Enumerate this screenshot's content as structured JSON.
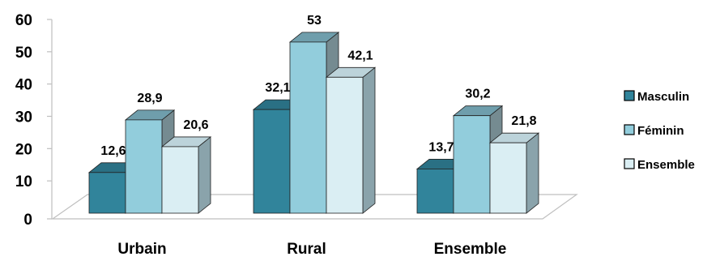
{
  "chart_data": {
    "type": "bar",
    "style": "3d-clustered-column",
    "categories": [
      "Urbain",
      "Rural",
      "Ensemble"
    ],
    "series": [
      {
        "name": "Masculin",
        "values": [
          12.6,
          32.1,
          13.7
        ],
        "labels": [
          "12,6",
          "32,1",
          "13,7"
        ],
        "color": "#31849b"
      },
      {
        "name": "Féminin",
        "values": [
          28.9,
          53,
          30.2
        ],
        "labels": [
          "28,9",
          "53",
          "30,2"
        ],
        "color": "#92cddc"
      },
      {
        "name": "Ensemble",
        "values": [
          20.6,
          42.1,
          21.8
        ],
        "labels": [
          "20,6",
          "42,1",
          "21,8"
        ],
        "color": "#daeef3"
      }
    ],
    "yticks": [
      "0",
      "10",
      "20",
      "30",
      "40",
      "50",
      "60"
    ],
    "ylim": [
      0,
      60
    ],
    "grid": false,
    "legend": "right"
  }
}
